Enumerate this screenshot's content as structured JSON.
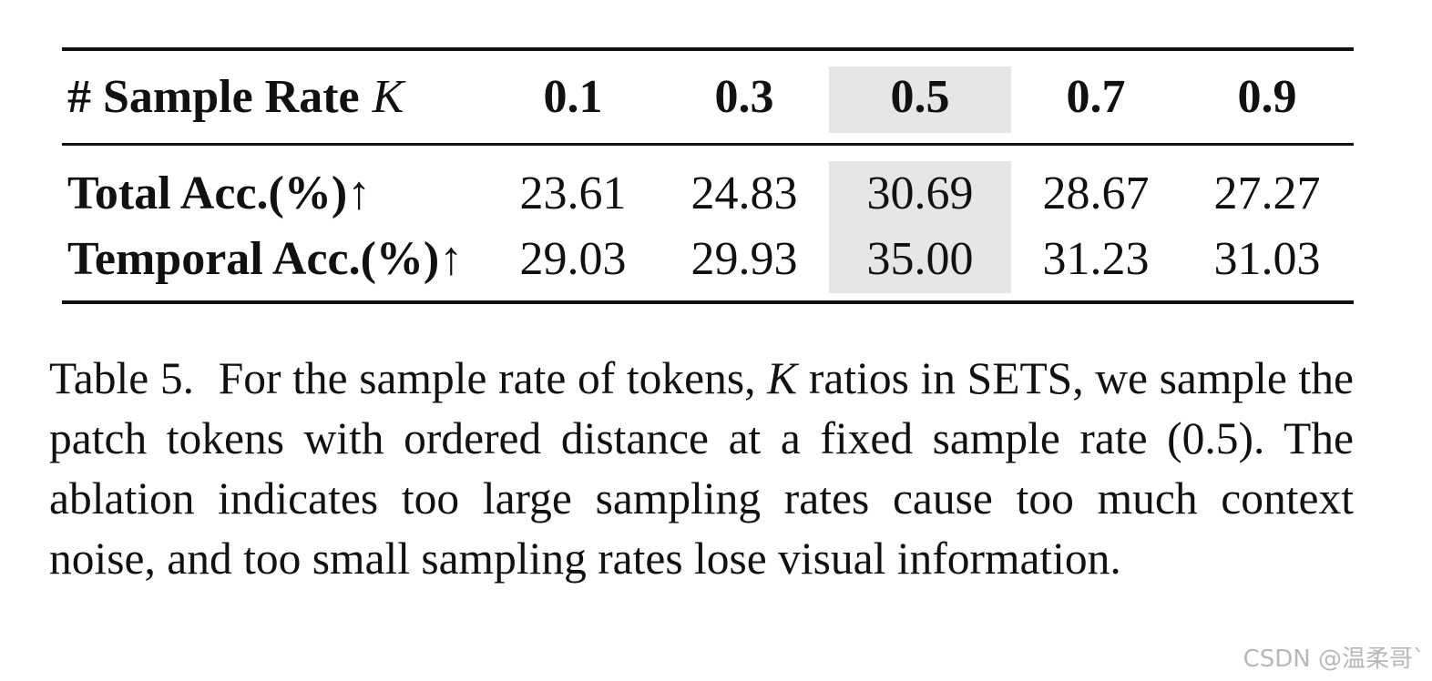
{
  "table": {
    "header": {
      "label_prefix": "# Sample Rate",
      "label_var": "K",
      "columns": [
        "0.1",
        "0.3",
        "0.5",
        "0.7",
        "0.9"
      ],
      "highlighted_column": "0.5"
    },
    "rows": [
      {
        "label": "Total Acc.(%)↑",
        "values": [
          "23.61",
          "24.83",
          "30.69",
          "28.67",
          "27.27"
        ]
      },
      {
        "label": "Temporal Acc.(%)↑",
        "values": [
          "29.03",
          "29.93",
          "35.00",
          "31.23",
          "31.03"
        ]
      }
    ],
    "highlight_color": "#e6e6e6"
  },
  "caption": {
    "label": "Table 5.",
    "text_part1": "For the sample rate of tokens,",
    "text_italic": "K",
    "text_part2": "ratios in SETS, we sample the patch tokens with ordered distance at a fixed sample rate (0.5).  The ablation indicates too large sampling rates cause too much context noise, and too small sampling rates lose visual information."
  },
  "watermark": "CSDN @温柔哥`"
}
